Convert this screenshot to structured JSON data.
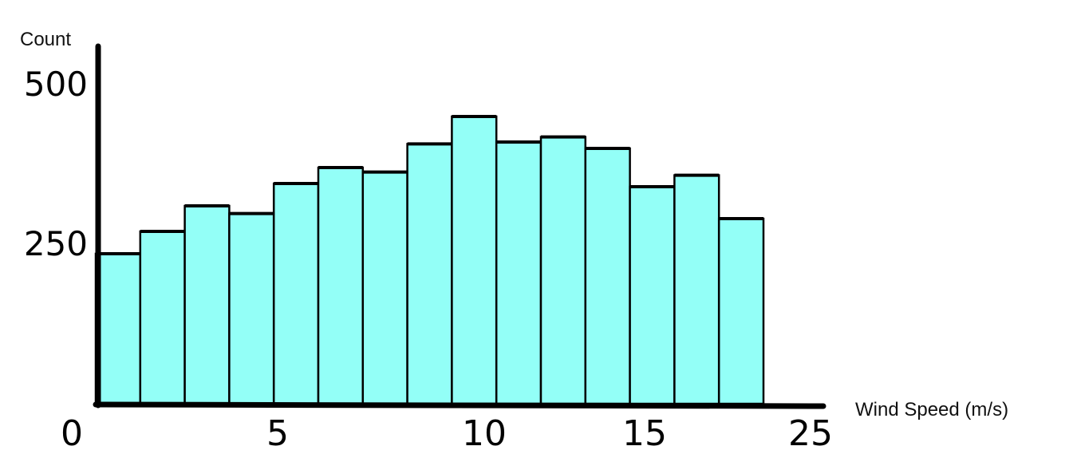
{
  "chart_data": {
    "type": "bar",
    "title": "",
    "xlabel": "Wind Speed (m/s)",
    "ylabel": "Count",
    "xlim": [
      0,
      25
    ],
    "ylim": [
      0,
      500
    ],
    "x_ticks": [
      "0",
      "5",
      "10",
      "15",
      "25"
    ],
    "y_ticks": [
      "250",
      "500"
    ],
    "bin_width": 1.5,
    "bins": [
      {
        "start": 0.0,
        "end": 1.5,
        "value": 235
      },
      {
        "start": 1.5,
        "end": 3.0,
        "value": 270
      },
      {
        "start": 3.0,
        "end": 4.5,
        "value": 310
      },
      {
        "start": 4.5,
        "end": 6.0,
        "value": 298
      },
      {
        "start": 6.0,
        "end": 7.5,
        "value": 345
      },
      {
        "start": 7.5,
        "end": 9.0,
        "value": 370
      },
      {
        "start": 9.0,
        "end": 10.5,
        "value": 363
      },
      {
        "start": 10.5,
        "end": 12.0,
        "value": 407
      },
      {
        "start": 12.0,
        "end": 13.5,
        "value": 450
      },
      {
        "start": 13.5,
        "end": 15.0,
        "value": 410
      },
      {
        "start": 15.0,
        "end": 16.5,
        "value": 418
      },
      {
        "start": 16.5,
        "end": 18.0,
        "value": 400
      },
      {
        "start": 18.0,
        "end": 19.5,
        "value": 340
      },
      {
        "start": 19.5,
        "end": 21.0,
        "value": 358
      },
      {
        "start": 21.0,
        "end": 22.5,
        "value": 290
      }
    ],
    "colors": {
      "bar_fill": "#93fff7",
      "bar_stroke": "#000000",
      "axis": "#000000"
    }
  }
}
